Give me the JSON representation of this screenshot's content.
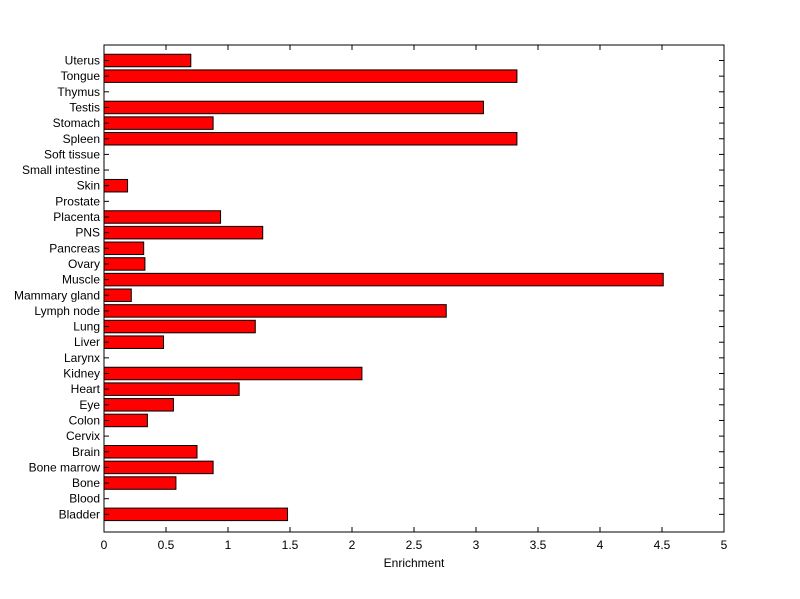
{
  "chart_data": {
    "type": "bar",
    "orientation": "horizontal",
    "title": "",
    "xlabel": "Enrichment",
    "ylabel": "",
    "xlim": [
      0,
      5
    ],
    "xticks": [
      "0",
      "0.5",
      "1",
      "1.5",
      "2",
      "2.5",
      "3",
      "3.5",
      "4",
      "4.5",
      "5"
    ],
    "grid": false,
    "bar_color": "#ff0000",
    "categories": [
      "Uterus",
      "Tongue",
      "Thymus",
      "Testis",
      "Stomach",
      "Spleen",
      "Soft tissue",
      "Small intestine",
      "Skin",
      "Prostate",
      "Placenta",
      "PNS",
      "Pancreas",
      "Ovary",
      "Muscle",
      "Mammary gland",
      "Lymph node",
      "Lung",
      "Liver",
      "Larynx",
      "Kidney",
      "Heart",
      "Eye",
      "Colon",
      "Cervix",
      "Brain",
      "Bone marrow",
      "Bone",
      "Blood",
      "Bladder"
    ],
    "values": [
      0.7,
      3.33,
      0,
      3.06,
      0.88,
      3.33,
      0,
      0,
      0.19,
      0,
      0.94,
      1.28,
      0.32,
      0.33,
      4.51,
      0.22,
      2.76,
      1.22,
      0.48,
      0,
      2.08,
      1.09,
      0.56,
      0.35,
      0,
      0.75,
      0.88,
      0.58,
      0,
      1.48
    ]
  }
}
